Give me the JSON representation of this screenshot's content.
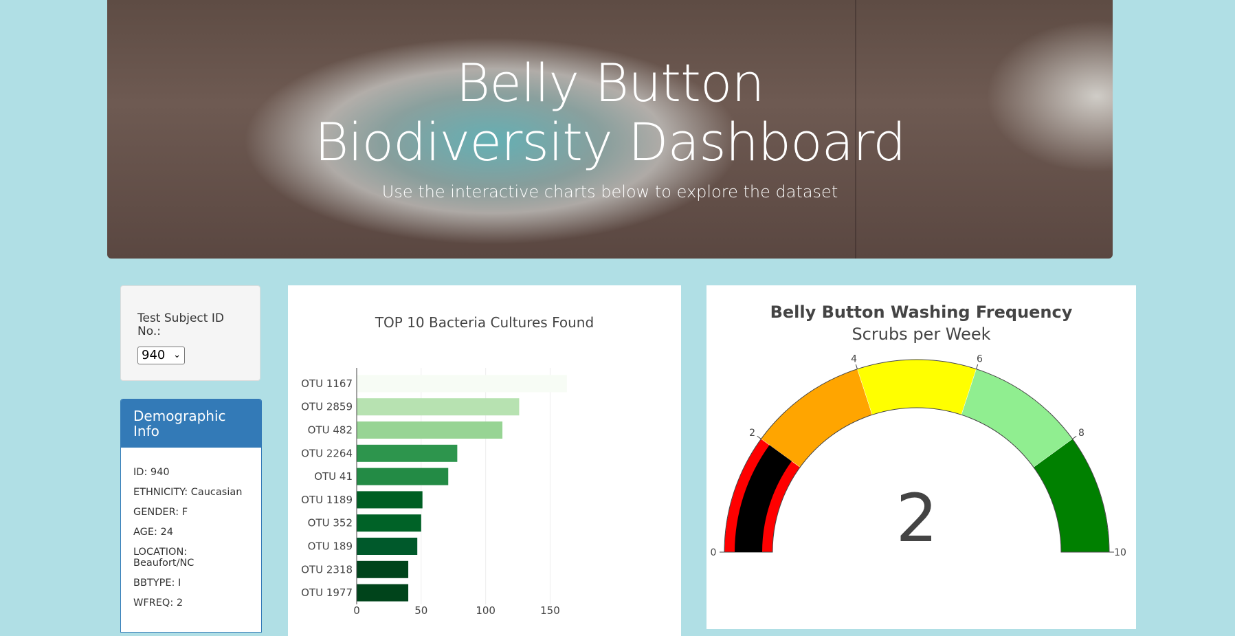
{
  "header": {
    "title": "Belly Button Biodiversity Dashboard",
    "subtitle": "Use the interactive charts below to explore the dataset"
  },
  "selector": {
    "label": "Test Subject ID No.:",
    "selected": "940"
  },
  "demographics": {
    "heading": "Demographic Info",
    "rows": [
      "ID: 940",
      "ETHNICITY: Caucasian",
      "GENDER: F",
      "AGE: 24",
      "LOCATION: Beaufort/NC",
      "BBTYPE: I",
      "WFREQ: 2"
    ]
  },
  "colors": {
    "page_bg": "#b0dfe5",
    "panel_header": "#337ab7"
  },
  "chart_data": [
    {
      "type": "bar",
      "orientation": "horizontal",
      "title": "TOP 10 Bacteria Cultures Found",
      "categories": [
        "OTU 1167",
        "OTU 2859",
        "OTU 482",
        "OTU 2264",
        "OTU 41",
        "OTU 1189",
        "OTU 352",
        "OTU 189",
        "OTU 2318",
        "OTU 1977"
      ],
      "values": [
        163,
        126,
        113,
        78,
        71,
        51,
        50,
        47,
        40,
        40
      ],
      "bar_colors": [
        "#f7fcf5",
        "#b7e2b1",
        "#97d494",
        "#2d954d",
        "#238b45",
        "#005f24",
        "#006227",
        "#00592b",
        "#00441b",
        "#00441b"
      ],
      "xlim": [
        0,
        170
      ],
      "xticks": [
        0,
        50,
        100,
        150
      ],
      "grid": true
    },
    {
      "type": "gauge",
      "title": "Belly Button Washing Frequency",
      "subtitle": "Scrubs per Week",
      "value": 2,
      "range": [
        0,
        10
      ],
      "ticks": [
        0,
        2,
        4,
        6,
        8,
        10
      ],
      "steps": [
        {
          "range": [
            0,
            2
          ],
          "color": "#ff0000"
        },
        {
          "range": [
            2,
            4
          ],
          "color": "#ffa500"
        },
        {
          "range": [
            4,
            6
          ],
          "color": "#ffff00"
        },
        {
          "range": [
            6,
            8
          ],
          "color": "#90ee90"
        },
        {
          "range": [
            8,
            10
          ],
          "color": "#008000"
        }
      ],
      "bar_color": "#000000"
    }
  ]
}
